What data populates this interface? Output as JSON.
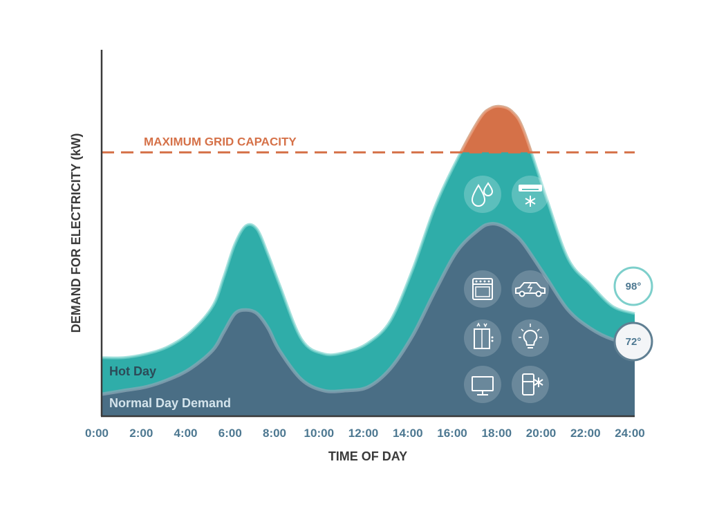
{
  "chart_data": {
    "type": "area",
    "title": "",
    "xlabel": "TIME OF DAY",
    "ylabel": "DEMAND FOR ELECTRICITY (kW)",
    "x_ticks": [
      "0:00",
      "2:00",
      "4:00",
      "6:00",
      "8:00",
      "10:00",
      "12:00",
      "14:00",
      "16:00",
      "18:00",
      "20:00",
      "22:00",
      "24:00"
    ],
    "xlim": [
      0,
      24
    ],
    "ylim": [
      0,
      100
    ],
    "grid": false,
    "threshold": {
      "label": "MAXIMUM GRID CAPACITY",
      "value": 72,
      "color": "#d57148"
    },
    "series": [
      {
        "name": "Hot Day",
        "color": "#2fada9",
        "x": [
          0,
          1,
          2,
          3,
          4,
          5,
          5.5,
          6,
          6.5,
          7,
          7.5,
          8,
          9,
          10,
          11,
          12,
          13,
          14,
          15,
          16,
          17,
          17.5,
          18,
          18.5,
          19,
          20,
          21,
          22,
          23,
          24
        ],
        "values": [
          16,
          16,
          17,
          19,
          23,
          30,
          38,
          47,
          52,
          51,
          44,
          36,
          21,
          17,
          17.5,
          20,
          26,
          40,
          57,
          70,
          81,
          84,
          84.5,
          83,
          78,
          60,
          43,
          36,
          30,
          28
        ]
      },
      {
        "name": "Normal Day Demand",
        "color": "#4a6e85",
        "x": [
          0,
          1,
          2,
          3,
          4,
          5,
          5.5,
          6,
          6.5,
          7,
          7.5,
          8,
          9,
          10,
          11,
          12,
          13,
          14,
          15,
          16,
          17,
          17.5,
          18,
          18.5,
          19,
          20,
          21,
          22,
          23,
          24
        ],
        "values": [
          6,
          7,
          8,
          10,
          13,
          18,
          23,
          28,
          29,
          28,
          24,
          18,
          10,
          7,
          7,
          8,
          13,
          22,
          34,
          45,
          51,
          52.5,
          52,
          50,
          47,
          38,
          29,
          24,
          21,
          20
        ]
      }
    ],
    "badges": [
      {
        "label": "98°",
        "series": "Hot Day"
      },
      {
        "label": "72°",
        "series": "Normal Day Demand"
      }
    ],
    "hot_icons": [
      "water-drops-icon",
      "air-conditioner-icon"
    ],
    "normal_icons": [
      "oven-icon",
      "electric-car-icon",
      "elevator-icon",
      "light-bulb-icon",
      "television-icon",
      "refrigerator-icon"
    ]
  }
}
